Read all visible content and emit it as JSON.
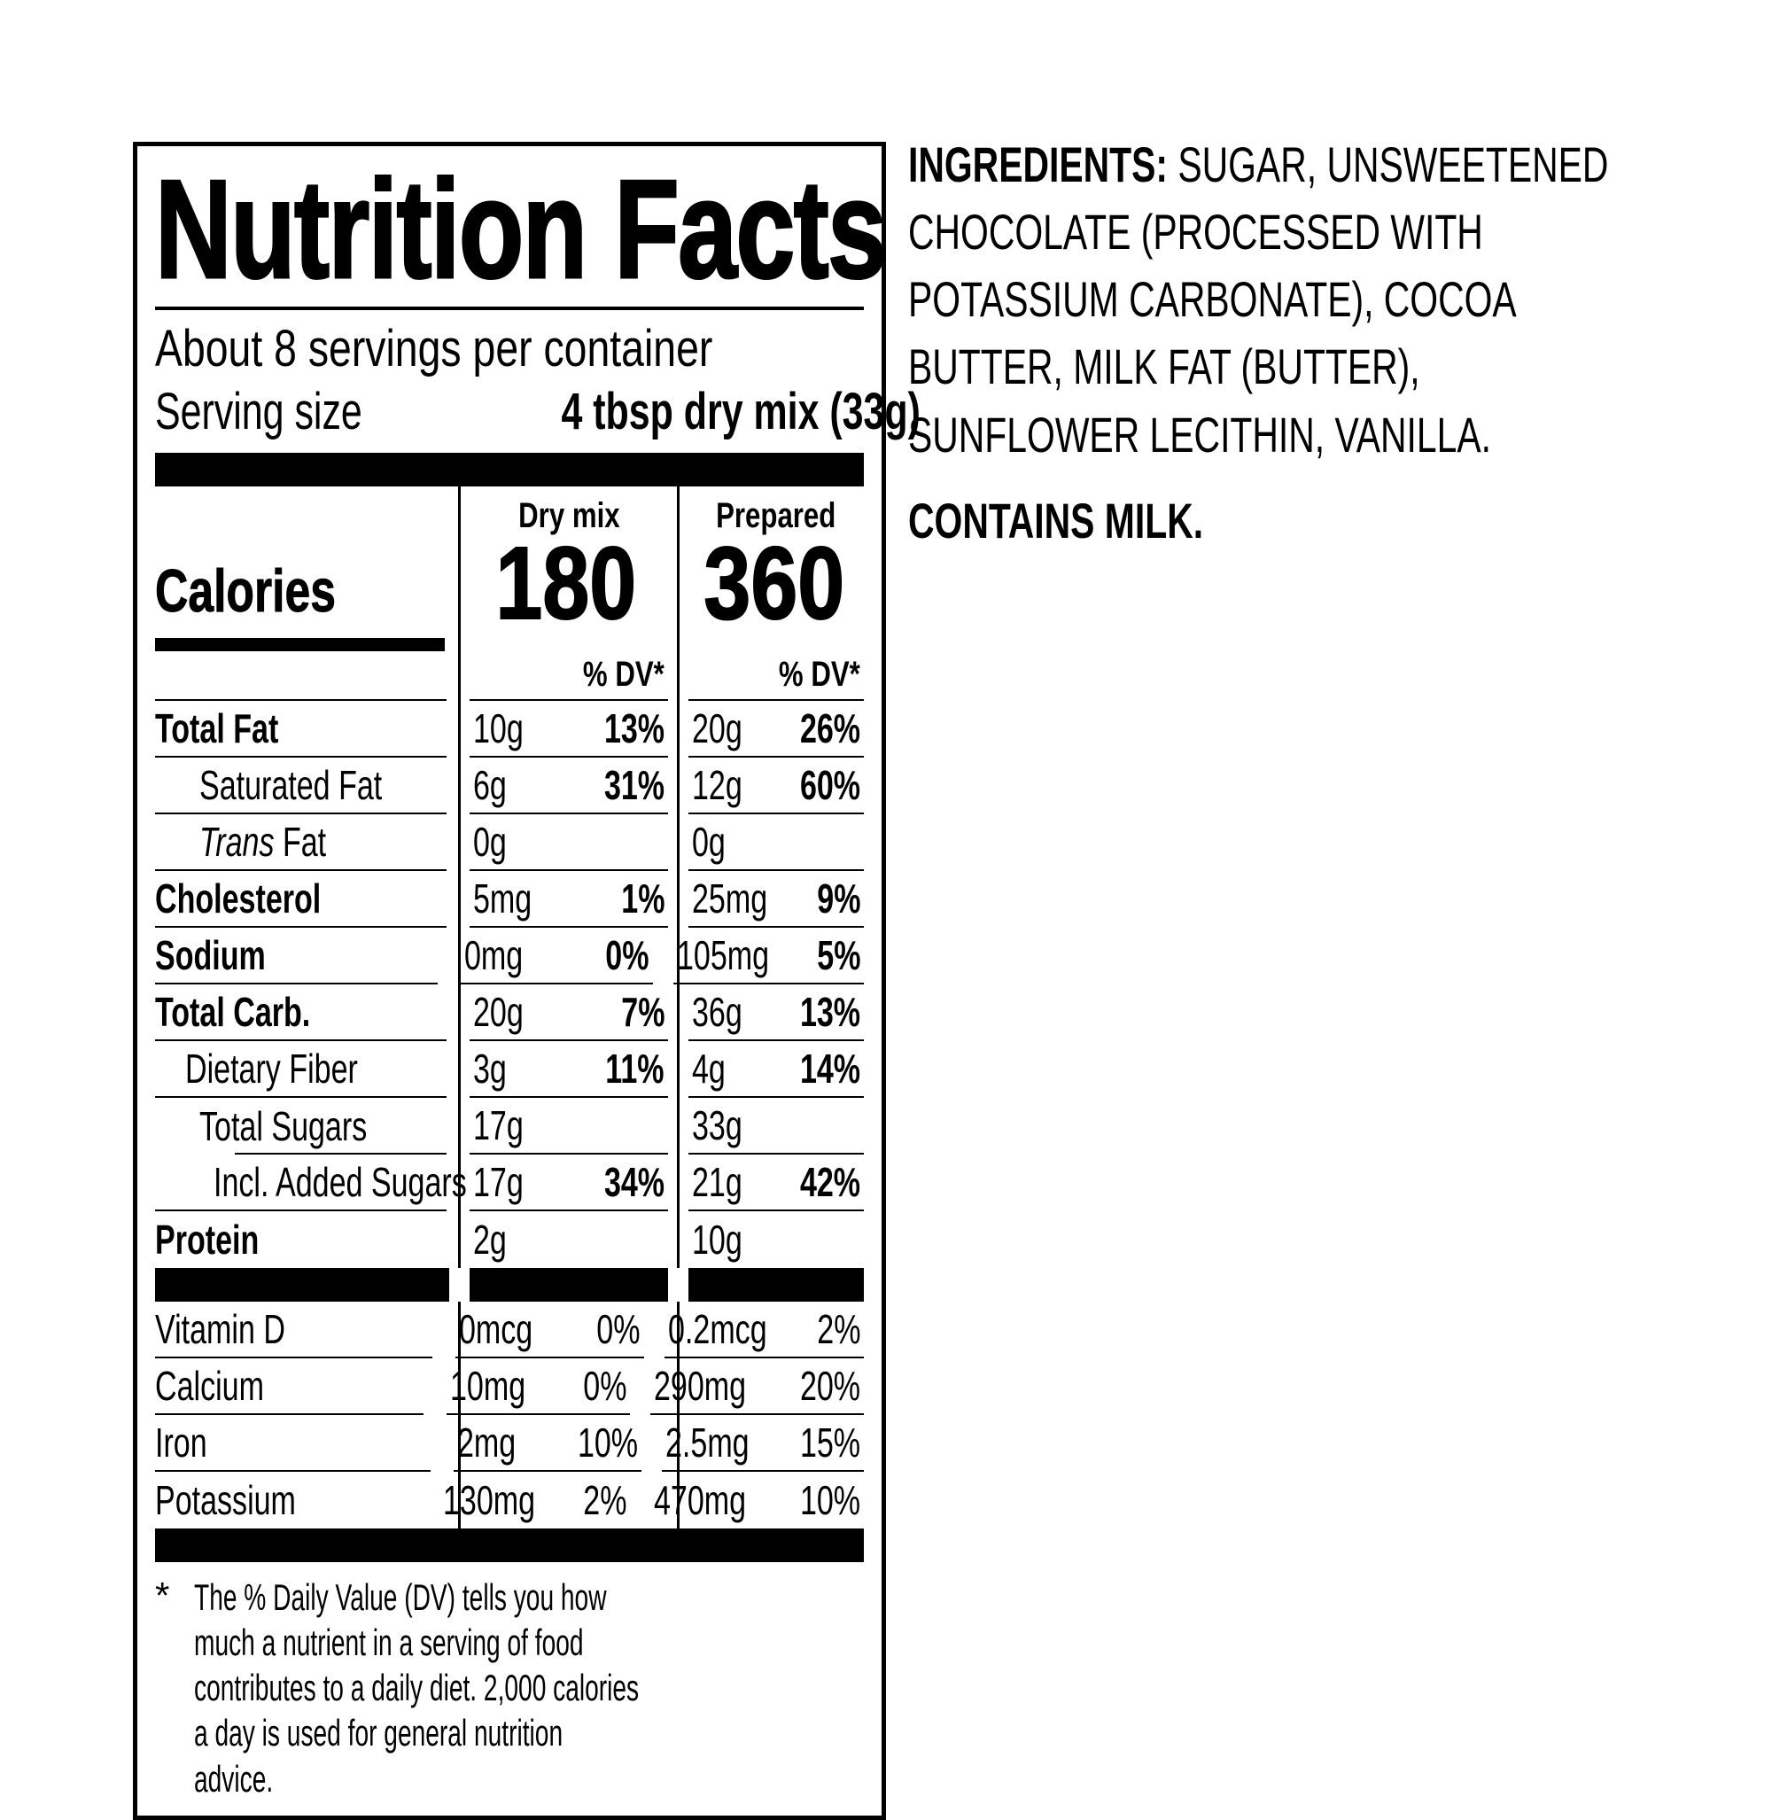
{
  "label": {
    "title": "Nutrition Facts",
    "servings_per_container": "About 8 servings per container",
    "serving_size_label": "Serving size",
    "serving_size_value": "4 tbsp dry mix (33g)",
    "calories_label": "Calories",
    "columns": {
      "dry": {
        "header": "Dry mix",
        "calories": "180"
      },
      "prepared": {
        "header": "Prepared",
        "calories": "360"
      }
    },
    "dv_header": "% DV*",
    "rows": [
      {
        "name": "Total Fat",
        "dry": {
          "amount": "10g",
          "dv": "13%"
        },
        "prep": {
          "amount": "20g",
          "dv": "26%"
        }
      },
      {
        "name": "Saturated Fat",
        "dry": {
          "amount": "6g",
          "dv": "31%"
        },
        "prep": {
          "amount": "12g",
          "dv": "60%"
        }
      },
      {
        "name_italic": "Trans",
        "name": " Fat",
        "dry": {
          "amount": "0g",
          "dv": ""
        },
        "prep": {
          "amount": "0g",
          "dv": ""
        }
      },
      {
        "name": "Cholesterol",
        "dry": {
          "amount": "5mg",
          "dv": "1%"
        },
        "prep": {
          "amount": "25mg",
          "dv": "9%"
        }
      },
      {
        "name": "Sodium",
        "dry": {
          "amount": "0mg",
          "dv": "0%"
        },
        "prep": {
          "amount": "105mg",
          "dv": "5%"
        }
      },
      {
        "name": "Total Carb.",
        "dry": {
          "amount": "20g",
          "dv": "7%"
        },
        "prep": {
          "amount": "36g",
          "dv": "13%"
        }
      },
      {
        "name": "Dietary Fiber",
        "dry": {
          "amount": "3g",
          "dv": "11%"
        },
        "prep": {
          "amount": "4g",
          "dv": "14%"
        }
      },
      {
        "name": "Total Sugars",
        "dry": {
          "amount": "17g",
          "dv": ""
        },
        "prep": {
          "amount": "33g",
          "dv": ""
        }
      },
      {
        "name": "Incl. Added Sugars",
        "dry": {
          "amount": "17g",
          "dv": "34%"
        },
        "prep": {
          "amount": "21g",
          "dv": "42%"
        }
      },
      {
        "name": "Protein",
        "dry": {
          "amount": "2g",
          "dv": ""
        },
        "prep": {
          "amount": "10g",
          "dv": ""
        }
      },
      {
        "name": "Vitamin D",
        "dry": {
          "amount": "0mcg",
          "dv": "0%"
        },
        "prep": {
          "amount": "0.2mcg",
          "dv": "2%"
        }
      },
      {
        "name": "Calcium",
        "dry": {
          "amount": "10mg",
          "dv": "0%"
        },
        "prep": {
          "amount": "290mg",
          "dv": "20%"
        }
      },
      {
        "name": "Iron",
        "dry": {
          "amount": "2mg",
          "dv": "10%"
        },
        "prep": {
          "amount": "2.5mg",
          "dv": "15%"
        }
      },
      {
        "name": "Potassium",
        "dry": {
          "amount": "130mg",
          "dv": "2%"
        },
        "prep": {
          "amount": "470mg",
          "dv": "10%"
        }
      }
    ],
    "footnote_marker": "*",
    "footnote": "The % Daily Value (DV) tells you how much a nutrient in a serving of food contributes to a daily diet. 2,000 calories a day is used for general nutrition advice."
  },
  "ingredients": {
    "heading": "INGREDIENTS:",
    "text": " SUGAR, UNSWEETENED CHOCOLATE (PROCESSED WITH POTASSIUM CARBONATE), COCOA BUTTER, MILK FAT (BUTTER), SUNFLOWER LECITHIN, VANILLA.",
    "contains": "CONTAINS MILK."
  }
}
